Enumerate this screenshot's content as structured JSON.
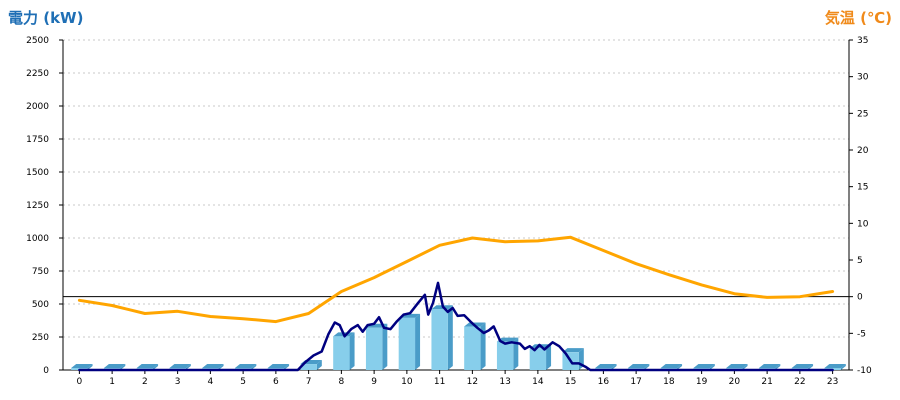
{
  "header": {
    "left_title": "電力 (kW)",
    "right_title": "気温 (℃)"
  },
  "colors": {
    "power_title": "#1f6fb5",
    "temp_title": "#f08a1a",
    "bar_front": "#87ceeb",
    "bar_side": "#4a9cc8",
    "bar_top": "#b9e3f5",
    "power_line": "#000080",
    "temp_line": "#ffa500",
    "grid": "#c8c8c8"
  },
  "chart_data": {
    "type": "bar",
    "x_ticks": [
      "0",
      "1",
      "2",
      "3",
      "4",
      "5",
      "6",
      "7",
      "8",
      "9",
      "10",
      "11",
      "12",
      "13",
      "14",
      "15",
      "16",
      "17",
      "18",
      "19",
      "20",
      "21",
      "22",
      "23"
    ],
    "y_left": {
      "label": "電力 (kW)",
      "min": 0,
      "max": 2500,
      "ticks": [
        "0",
        "250",
        "500",
        "750",
        "1000",
        "1250",
        "1500",
        "1750",
        "2000",
        "2250",
        "2500"
      ]
    },
    "y_right": {
      "label": "気温 (℃)",
      "min": -10,
      "max": 35,
      "ticks": [
        "-10",
        "-5",
        "0",
        "5",
        "10",
        "15",
        "20",
        "25",
        "30",
        "35"
      ]
    },
    "grid": true,
    "zero_line_temp": 0,
    "series": [
      {
        "kind": "bar",
        "axis": "left",
        "values": [
          0,
          0,
          0,
          0,
          0,
          0,
          0,
          45,
          255,
          320,
          395,
          460,
          330,
          215,
          165,
          135,
          0,
          0,
          0,
          0,
          0,
          0,
          0,
          0
        ]
      },
      {
        "kind": "line",
        "axis": "left",
        "points": [
          [
            0,
            0
          ],
          [
            1,
            0
          ],
          [
            2,
            0
          ],
          [
            3,
            0
          ],
          [
            4,
            0
          ],
          [
            5,
            0
          ],
          [
            6,
            0
          ],
          [
            6.67,
            0
          ],
          [
            6.9,
            60
          ],
          [
            7.15,
            110
          ],
          [
            7.4,
            140
          ],
          [
            7.6,
            270
          ],
          [
            7.8,
            360
          ],
          [
            7.95,
            340
          ],
          [
            8.1,
            255
          ],
          [
            8.3,
            310
          ],
          [
            8.5,
            340
          ],
          [
            8.65,
            290
          ],
          [
            8.8,
            340
          ],
          [
            9.0,
            350
          ],
          [
            9.15,
            400
          ],
          [
            9.3,
            320
          ],
          [
            9.5,
            310
          ],
          [
            9.7,
            370
          ],
          [
            9.9,
            420
          ],
          [
            10.1,
            430
          ],
          [
            10.35,
            510
          ],
          [
            10.55,
            570
          ],
          [
            10.65,
            420
          ],
          [
            10.8,
            510
          ],
          [
            10.95,
            660
          ],
          [
            11.1,
            480
          ],
          [
            11.25,
            440
          ],
          [
            11.4,
            470
          ],
          [
            11.55,
            410
          ],
          [
            11.75,
            415
          ],
          [
            11.95,
            365
          ],
          [
            12.15,
            320
          ],
          [
            12.35,
            280
          ],
          [
            12.5,
            300
          ],
          [
            12.65,
            330
          ],
          [
            12.85,
            220
          ],
          [
            13.0,
            200
          ],
          [
            13.2,
            210
          ],
          [
            13.45,
            200
          ],
          [
            13.6,
            160
          ],
          [
            13.75,
            180
          ],
          [
            13.9,
            150
          ],
          [
            14.05,
            190
          ],
          [
            14.2,
            155
          ],
          [
            14.45,
            210
          ],
          [
            14.65,
            180
          ],
          [
            14.85,
            125
          ],
          [
            15.05,
            50
          ],
          [
            15.25,
            50
          ],
          [
            15.45,
            25
          ],
          [
            15.6,
            0
          ],
          [
            16,
            0
          ],
          [
            17,
            0
          ],
          [
            18,
            0
          ],
          [
            19,
            0
          ],
          [
            20,
            0
          ],
          [
            21,
            0
          ],
          [
            22,
            0
          ],
          [
            23,
            0
          ]
        ]
      },
      {
        "kind": "line",
        "axis": "right",
        "points": [
          [
            0,
            -0.5
          ],
          [
            1,
            -1.2
          ],
          [
            2,
            -2.3
          ],
          [
            3,
            -2.0
          ],
          [
            4,
            -2.7
          ],
          [
            5,
            -3.0
          ],
          [
            6,
            -3.4
          ],
          [
            7,
            -2.3
          ],
          [
            8,
            0.7
          ],
          [
            9,
            2.6
          ],
          [
            10,
            4.8
          ],
          [
            11,
            7.0
          ],
          [
            12,
            8.0
          ],
          [
            13,
            7.5
          ],
          [
            14,
            7.6
          ],
          [
            15,
            8.1
          ],
          [
            16,
            6.3
          ],
          [
            17,
            4.5
          ],
          [
            18,
            3.0
          ],
          [
            19,
            1.6
          ],
          [
            20,
            0.4
          ],
          [
            21,
            -0.1
          ],
          [
            22,
            0.0
          ],
          [
            23,
            0.7
          ]
        ]
      }
    ]
  }
}
